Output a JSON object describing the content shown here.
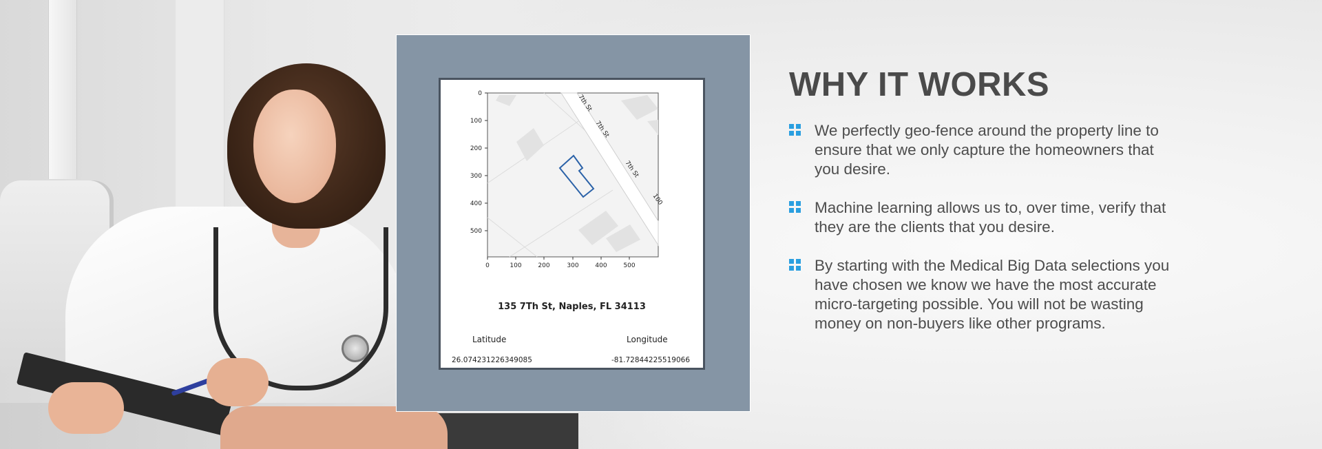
{
  "section": {
    "title": "WHY IT WORKS",
    "bullets": [
      "We perfectly geo-fence around the property line to ensure that we only capture the homeowners that you desire.",
      "Machine learning allows us to, over time, verify that they are the clients that you desire.",
      "By starting with the Medical Big Data selections you have chosen we know we have the most accurate micro-targeting possible. You will not be wasting money on non-buyers like other programs."
    ],
    "bullet_icon": "grid-square-icon",
    "accent_color": "#2a9fe0"
  },
  "map_card": {
    "y_ticks": [
      "0",
      "100",
      "200",
      "300",
      "400",
      "500"
    ],
    "x_ticks": [
      "0",
      "100",
      "200",
      "300",
      "400",
      "500"
    ],
    "street_labels": [
      "7th St",
      "7th St",
      "7th St",
      "100"
    ],
    "address": "135 7Th St, Naples, FL 34113",
    "latitude_label": "Latitude",
    "longitude_label": "Longitude",
    "latitude_value": "26.074231226349085",
    "longitude_value": "-81.72844225519066",
    "fence_color": "#2b62a8",
    "frame_color": "#8595a5"
  },
  "photo": {
    "subject_icon": "doctor-photo"
  }
}
